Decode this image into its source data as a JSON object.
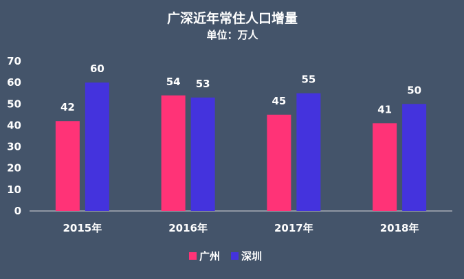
{
  "chart_data": {
    "type": "bar",
    "title": "广深近年常住人口增量",
    "subtitle": "单位：万人",
    "categories": [
      "2015年",
      "2016年",
      "2017年",
      "2018年"
    ],
    "series": [
      {
        "name": "广州",
        "values": [
          42,
          54,
          45,
          41
        ],
        "color": "#ff3377"
      },
      {
        "name": "深圳",
        "values": [
          60,
          53,
          55,
          50
        ],
        "color": "#4433dd"
      }
    ],
    "ylim": [
      0,
      70
    ],
    "yticks": [
      0,
      10,
      20,
      30,
      40,
      50,
      60,
      70
    ],
    "grid": false,
    "legend": "bottom"
  }
}
